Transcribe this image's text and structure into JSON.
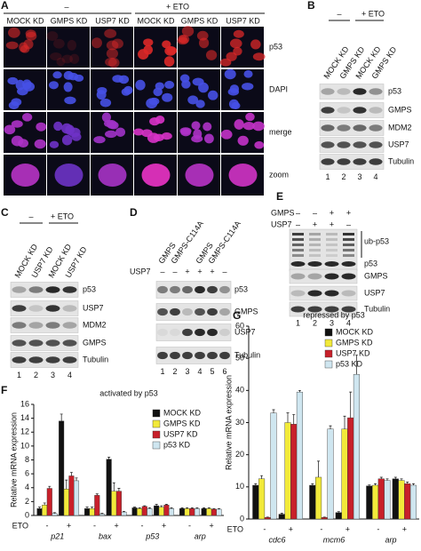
{
  "figure": {
    "a": {
      "label": "A",
      "conditions": [
        "–",
        "+ ETO"
      ],
      "columns": [
        "MOCK KD",
        "GMPS KD",
        "USP7 KD",
        "MOCK KD",
        "GMPS KD",
        "USP7 KD"
      ],
      "rows": [
        "p53",
        "DAPI",
        "merge",
        "zoom"
      ]
    },
    "b": {
      "label": "B",
      "conditions": [
        "–",
        "+ ETO"
      ],
      "lanes": [
        "MOCK KD",
        "GMPS KD",
        "MOCK KD",
        "GMPS KD"
      ],
      "bands": [
        "p53",
        "GMPS",
        "MDM2",
        "USP7",
        "Tubulin"
      ],
      "lane_numbers": [
        "1",
        "2",
        "3",
        "4"
      ]
    },
    "c": {
      "label": "C",
      "conditions": [
        "–",
        "+ ETO"
      ],
      "lanes": [
        "MOCK KD",
        "USP7 KD",
        "MOCK KD",
        "USP7 KD"
      ],
      "bands": [
        "p53",
        "USP7",
        "MDM2",
        "GMPS",
        "Tubulin"
      ],
      "lane_numbers": [
        "1",
        "2",
        "3",
        "4"
      ]
    },
    "d": {
      "label": "D",
      "lanes": [
        "GMPS",
        "GMPS-C114A",
        "GMPS",
        "GMPS-C114A"
      ],
      "usp7": {
        "label": "USP7",
        "signs": [
          "–",
          "–",
          "+",
          "+",
          "+",
          "–"
        ]
      },
      "bands": [
        "p53",
        "GMPS",
        "USP7",
        "Tubulin"
      ],
      "lane_numbers": [
        "1",
        "2",
        "3",
        "4",
        "5",
        "6"
      ]
    },
    "e": {
      "label": "E",
      "rows": [
        {
          "label": "GMPS",
          "signs": [
            "–",
            "–",
            "+",
            "+"
          ]
        },
        {
          "label": "USP7",
          "signs": [
            "–",
            "+",
            "+",
            "–"
          ]
        }
      ],
      "bands": [
        "ub-p53",
        "p53",
        "GMPS",
        "USP7",
        "Tubulin"
      ],
      "lane_numbers": [
        "1",
        "2",
        "3",
        "4"
      ]
    },
    "f": {
      "label": "F"
    },
    "g": {
      "label": "G"
    }
  },
  "chart_data": [
    {
      "type": "bar",
      "title": "activated by p53",
      "y_label": "Relative mRNA expression",
      "x_label": "ETO",
      "groups": [
        "p21",
        "bax",
        "p53",
        "arp"
      ],
      "categories": [
        "-",
        "+",
        "-",
        "+",
        "-",
        "+",
        "-",
        "+"
      ],
      "ylim": [
        0,
        16
      ],
      "yticks": [
        0,
        2,
        4,
        6,
        8,
        10,
        12,
        14,
        16
      ],
      "series": [
        {
          "name": "MOCK KD",
          "color": "#111111",
          "values": [
            1.0,
            13.6,
            1.0,
            8.1,
            1.1,
            1.4,
            1.0,
            1.0
          ],
          "errors": [
            0.2,
            1.0,
            0.2,
            0.3,
            0.1,
            0.2,
            0.1,
            0.1
          ]
        },
        {
          "name": "GMPS KD",
          "color": "#f2ea3a",
          "values": [
            1.5,
            3.8,
            1.0,
            3.5,
            1.0,
            1.2,
            1.0,
            1.0
          ],
          "errors": [
            0.3,
            1.3,
            0.2,
            1.2,
            0.1,
            0.2,
            0.1,
            0.1
          ]
        },
        {
          "name": "USP7 KD",
          "color": "#c8202a",
          "values": [
            3.9,
            5.7,
            2.9,
            3.5,
            1.3,
            1.5,
            1.0,
            0.9
          ],
          "errors": [
            0.3,
            0.5,
            0.2,
            0.4,
            0.1,
            0.1,
            0.1,
            0.1
          ]
        },
        {
          "name": "p53 KD",
          "color": "#cfe6f0",
          "values": [
            0.3,
            5.0,
            0.2,
            0.5,
            1.0,
            1.0,
            1.0,
            0.9
          ],
          "errors": [
            0.1,
            0.4,
            0.1,
            0.1,
            0.1,
            0.1,
            0.1,
            0.1
          ]
        }
      ]
    },
    {
      "type": "bar",
      "title": "repressed by p53",
      "y_label": "Relative mRNA expression",
      "x_label": "ETO",
      "groups": [
        "cdc6",
        "mcm6",
        "arp"
      ],
      "categories": [
        "-",
        "+",
        "-",
        "+",
        "-",
        "+"
      ],
      "ylim": [
        0,
        60
      ],
      "yticks": [
        0,
        10,
        20,
        30,
        40,
        50,
        60
      ],
      "series": [
        {
          "name": "MOCK KD",
          "color": "#111111",
          "values": [
            10.5,
            1.5,
            10.5,
            2.0,
            10.3,
            12.5
          ],
          "errors": [
            0.5,
            0.3,
            0.5,
            0.3,
            0.3,
            0.5
          ]
        },
        {
          "name": "GMPS KD",
          "color": "#f2ea3a",
          "values": [
            12.5,
            30.0,
            13.0,
            28.0,
            10.5,
            12.0
          ],
          "errors": [
            1.0,
            3.0,
            5.0,
            4.0,
            0.5,
            0.5
          ]
        },
        {
          "name": "USP7 KD",
          "color": "#c8202a",
          "values": [
            0.5,
            29.5,
            0.5,
            31.5,
            12.5,
            11.0
          ],
          "errors": [
            0.1,
            3.0,
            0.1,
            8.0,
            0.5,
            0.5
          ]
        },
        {
          "name": "p53 KD",
          "color": "#cfe6f0",
          "values": [
            33.0,
            39.5,
            28.0,
            45.0,
            12.0,
            10.5
          ],
          "errors": [
            1.0,
            0.5,
            1.0,
            6.0,
            0.5,
            0.5
          ]
        }
      ]
    }
  ]
}
